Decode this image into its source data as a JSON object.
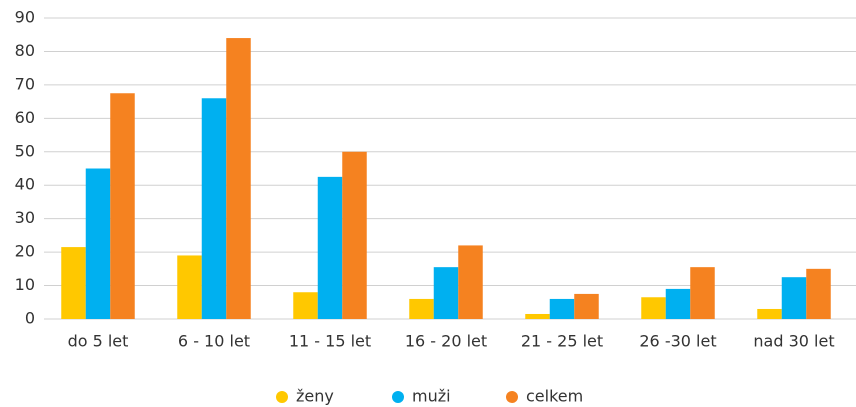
{
  "chart_data": {
    "type": "bar",
    "categories": [
      "do 5 let",
      "6 - 10 let",
      "11 - 15 let",
      "16 - 20 let",
      "21 - 25 let",
      "26 -30 let",
      "nad 30 let"
    ],
    "series": [
      {
        "name": "ženy",
        "color": "#ffc800",
        "values": [
          21.5,
          19,
          8,
          6,
          1.5,
          6.5,
          3
        ]
      },
      {
        "name": "muži",
        "color": "#00b0f0",
        "values": [
          45,
          66,
          42.5,
          15.5,
          6,
          9,
          12.5
        ]
      },
      {
        "name": "celkem",
        "color": "#f58220",
        "values": [
          67.5,
          84,
          50,
          22,
          7.5,
          15.5,
          15
        ]
      }
    ],
    "ylim": [
      0,
      90
    ],
    "yticks": [
      0,
      10,
      20,
      30,
      40,
      50,
      60,
      70,
      80,
      90
    ],
    "grid": true,
    "legend": "bottom"
  }
}
